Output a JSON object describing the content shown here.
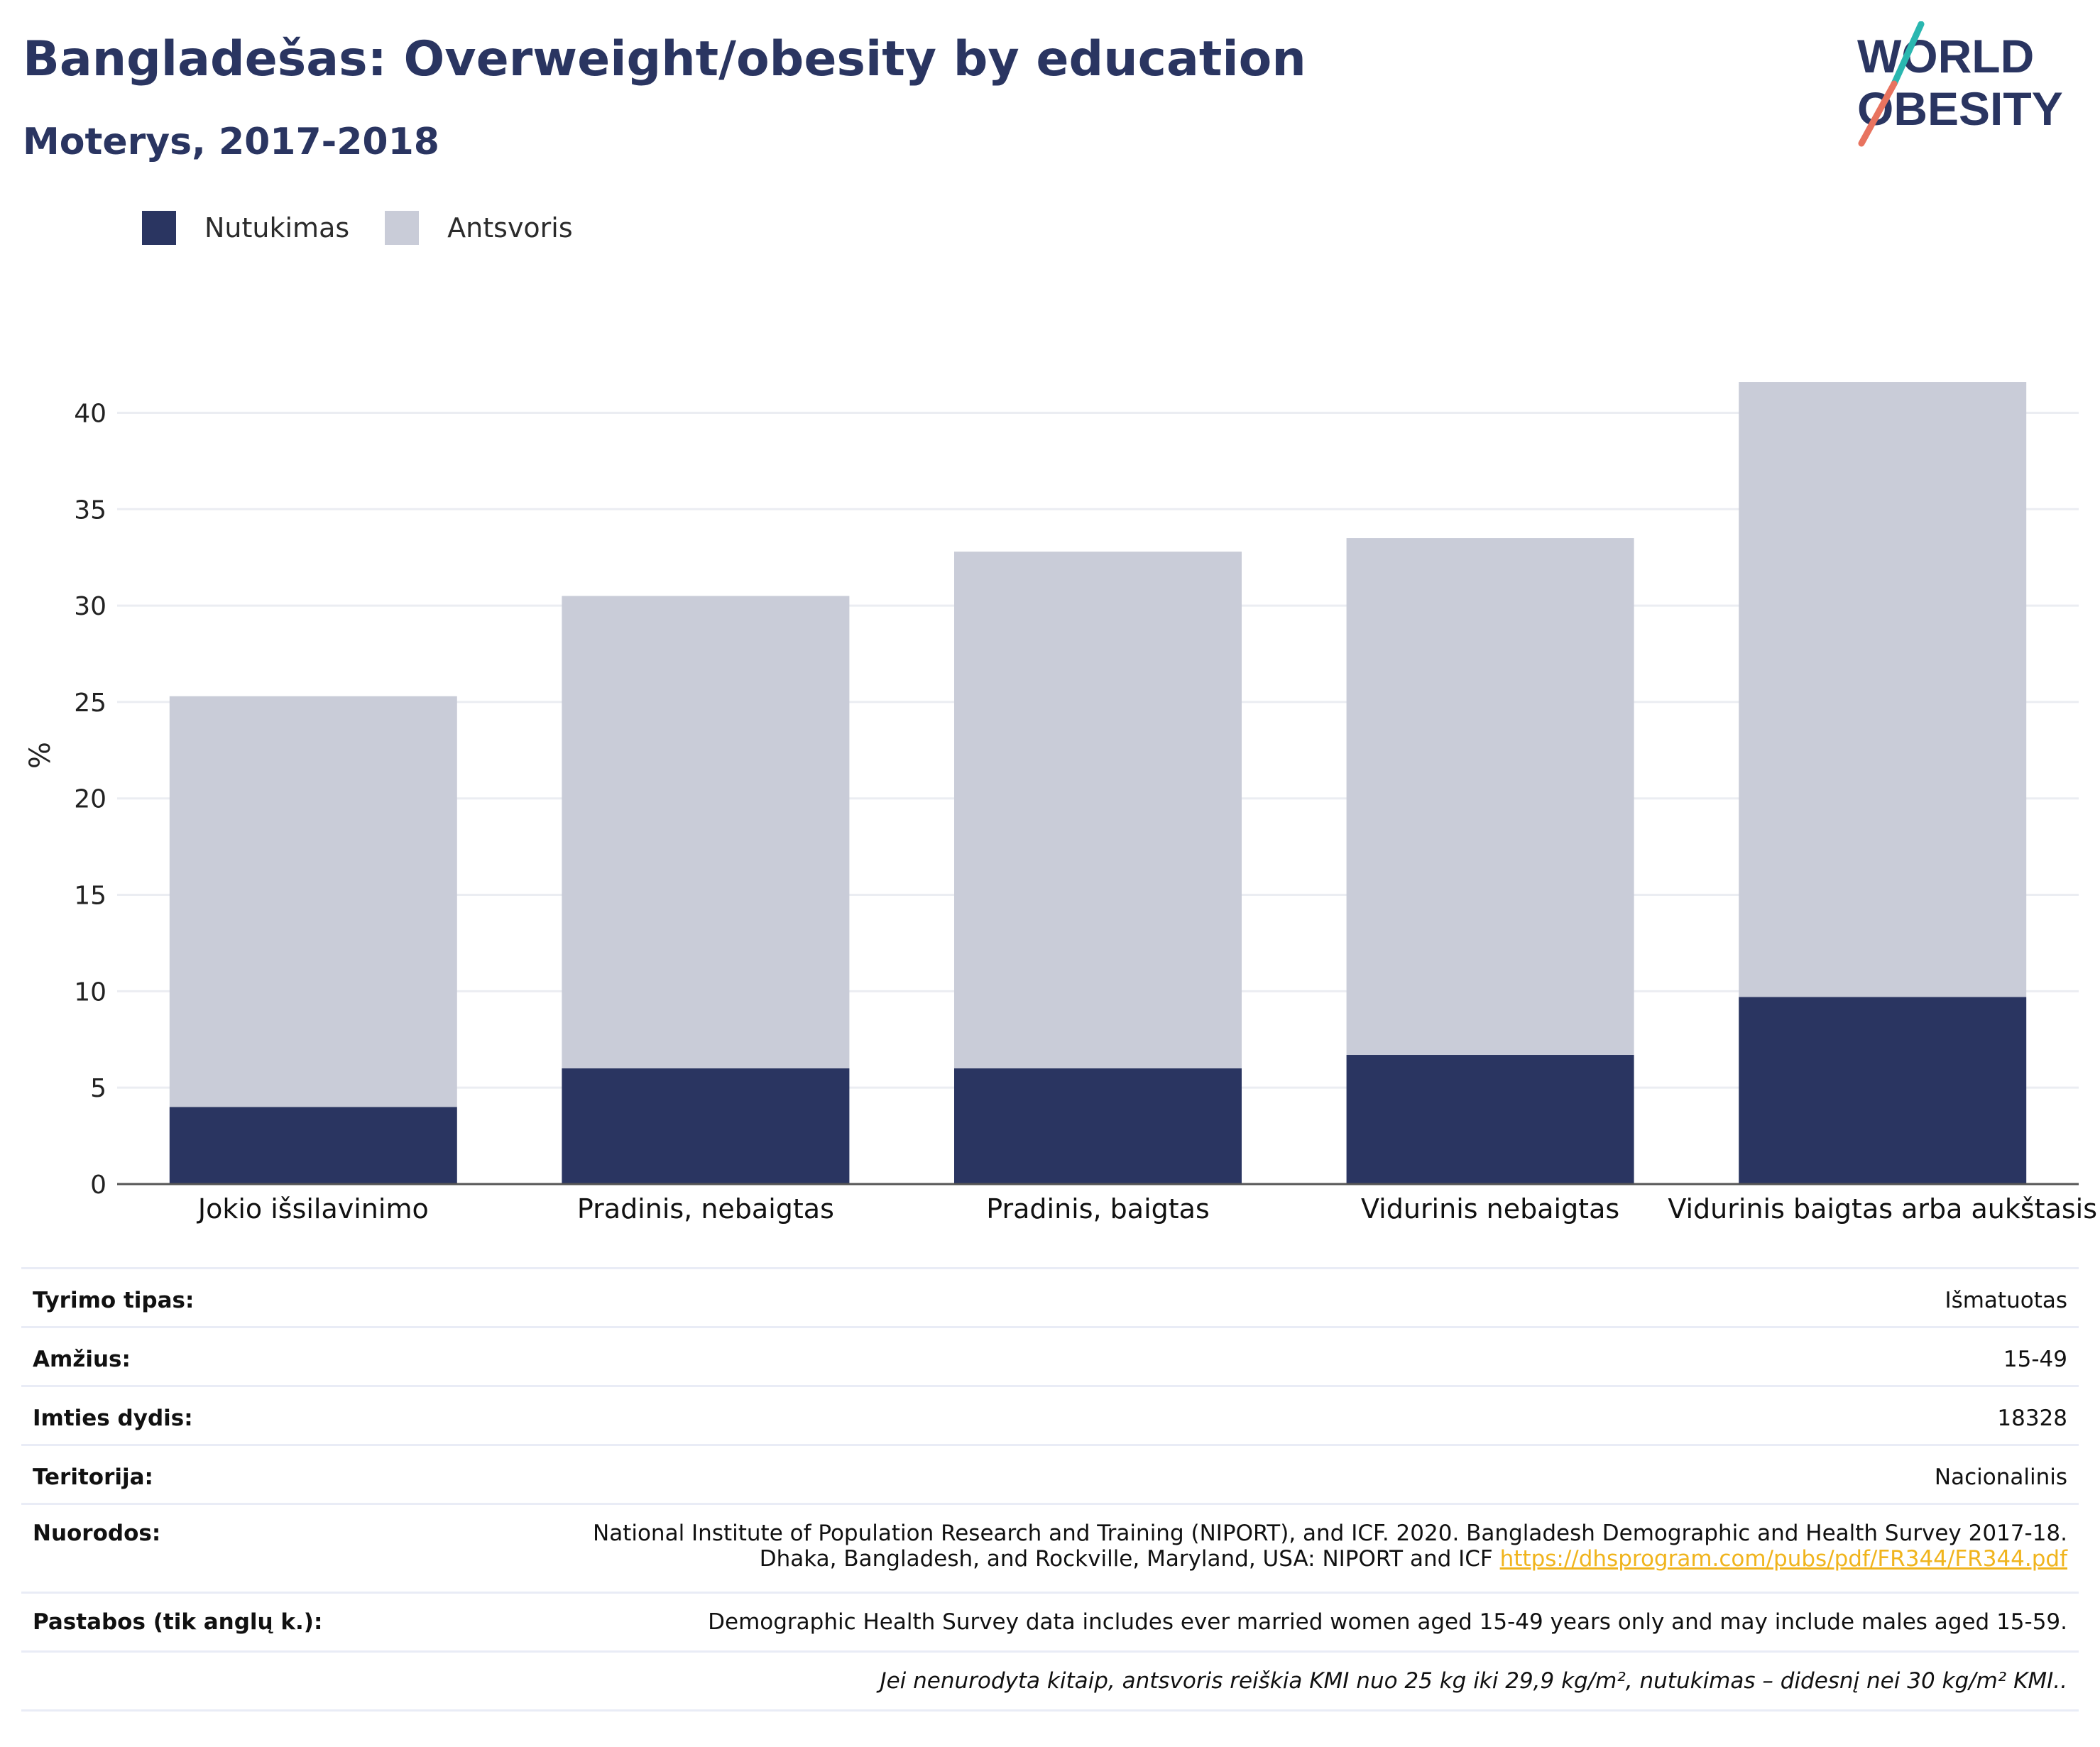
{
  "header": {
    "title": "Bangladešas: Overweight/obesity by education",
    "subtitle": "Moterys, 2017-2018"
  },
  "logo": {
    "line1": "WORLD",
    "line2": "OBESITY",
    "colors": {
      "text": "#2a3561",
      "slash_top": "#2ab7b0",
      "slash_bottom": "#e8735f"
    }
  },
  "legend": [
    {
      "label": "Nutukimas",
      "color": "#2a3561"
    },
    {
      "label": "Antsvoris",
      "color": "#c9ccd8"
    }
  ],
  "chart_data": {
    "type": "bar",
    "stacked": true,
    "categories": [
      "Jokio išsilavinimo",
      "Pradinis, nebaigtas",
      "Pradinis, baigtas",
      "Vidurinis nebaigtas",
      "Vidurinis baigtas arba aukštasis"
    ],
    "series": [
      {
        "name": "Nutukimas",
        "color": "#2a3561",
        "values": [
          4.0,
          6.0,
          6.0,
          6.7,
          9.7
        ]
      },
      {
        "name": "Antsvoris",
        "color": "#c9ccd8",
        "values": [
          21.3,
          24.5,
          26.8,
          26.8,
          31.9
        ]
      }
    ],
    "ylabel": "%",
    "ylim": [
      0,
      43
    ],
    "yticks": [
      0,
      5,
      10,
      15,
      20,
      25,
      30,
      35,
      40
    ],
    "grid": true
  },
  "meta": {
    "rows": [
      {
        "label": "Tyrimo tipas:",
        "value": "Išmatuotas"
      },
      {
        "label": "Amžius:",
        "value": "15-49"
      },
      {
        "label": "Imties dydis:",
        "value": "18328"
      },
      {
        "label": "Teritorija:",
        "value": "Nacionalinis"
      }
    ],
    "references": {
      "label": "Nuorodos:",
      "line1": "National Institute of Population Research and Training (NIPORT), and ICF. 2020. Bangladesh Demographic and Health Survey 2017-18.",
      "line2": "Dhaka, Bangladesh, and Rockville, Maryland, USA: NIPORT and ICF ",
      "link": "https://dhsprogram.com/pubs/pdf/FR344/FR344.pdf"
    },
    "notes": {
      "label": "Pastabos (tik anglų k.):",
      "value": "Demographic Health Survey data includes ever married women aged 15-49 years only and may include males aged 15-59."
    },
    "footnote": "Jei nenurodyta kitaip, antsvoris reiškia KMI nuo 25 kg iki 29,9 kg/m², nutukimas – didesnį nei 30 kg/m² KMI.."
  }
}
